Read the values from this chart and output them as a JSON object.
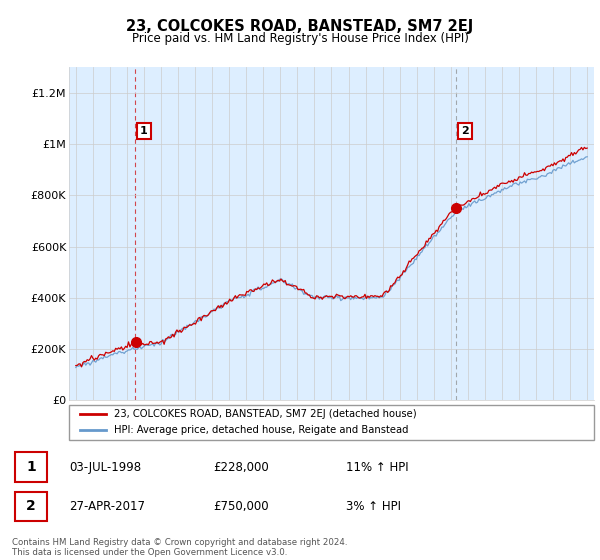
{
  "title": "23, COLCOKES ROAD, BANSTEAD, SM7 2EJ",
  "subtitle": "Price paid vs. HM Land Registry's House Price Index (HPI)",
  "legend_line1": "23, COLCOKES ROAD, BANSTEAD, SM7 2EJ (detached house)",
  "legend_line2": "HPI: Average price, detached house, Reigate and Banstead",
  "transaction1_label": "1",
  "transaction1_date": "03-JUL-1998",
  "transaction1_price": "£228,000",
  "transaction1_hpi": "11% ↑ HPI",
  "transaction2_label": "2",
  "transaction2_date": "27-APR-2017",
  "transaction2_price": "£750,000",
  "transaction2_hpi": "3% ↑ HPI",
  "footer": "Contains HM Land Registry data © Crown copyright and database right 2024.\nThis data is licensed under the Open Government Licence v3.0.",
  "year_start": 1995,
  "year_end": 2025,
  "ylim": [
    0,
    1300000
  ],
  "yticks": [
    0,
    200000,
    400000,
    600000,
    800000,
    1000000,
    1200000
  ],
  "ytick_labels": [
    "£0",
    "£200K",
    "£400K",
    "£600K",
    "£800K",
    "£1M",
    "£1.2M"
  ],
  "transaction1_year": 1998.5,
  "transaction2_year": 2017.33,
  "property_color": "#cc0000",
  "hpi_color": "#6699cc",
  "vline1_color": "#cc0000",
  "vline2_color": "#888888",
  "grid_color": "#cccccc",
  "chart_bg_color": "#ddeeff",
  "background_color": "#ffffff"
}
